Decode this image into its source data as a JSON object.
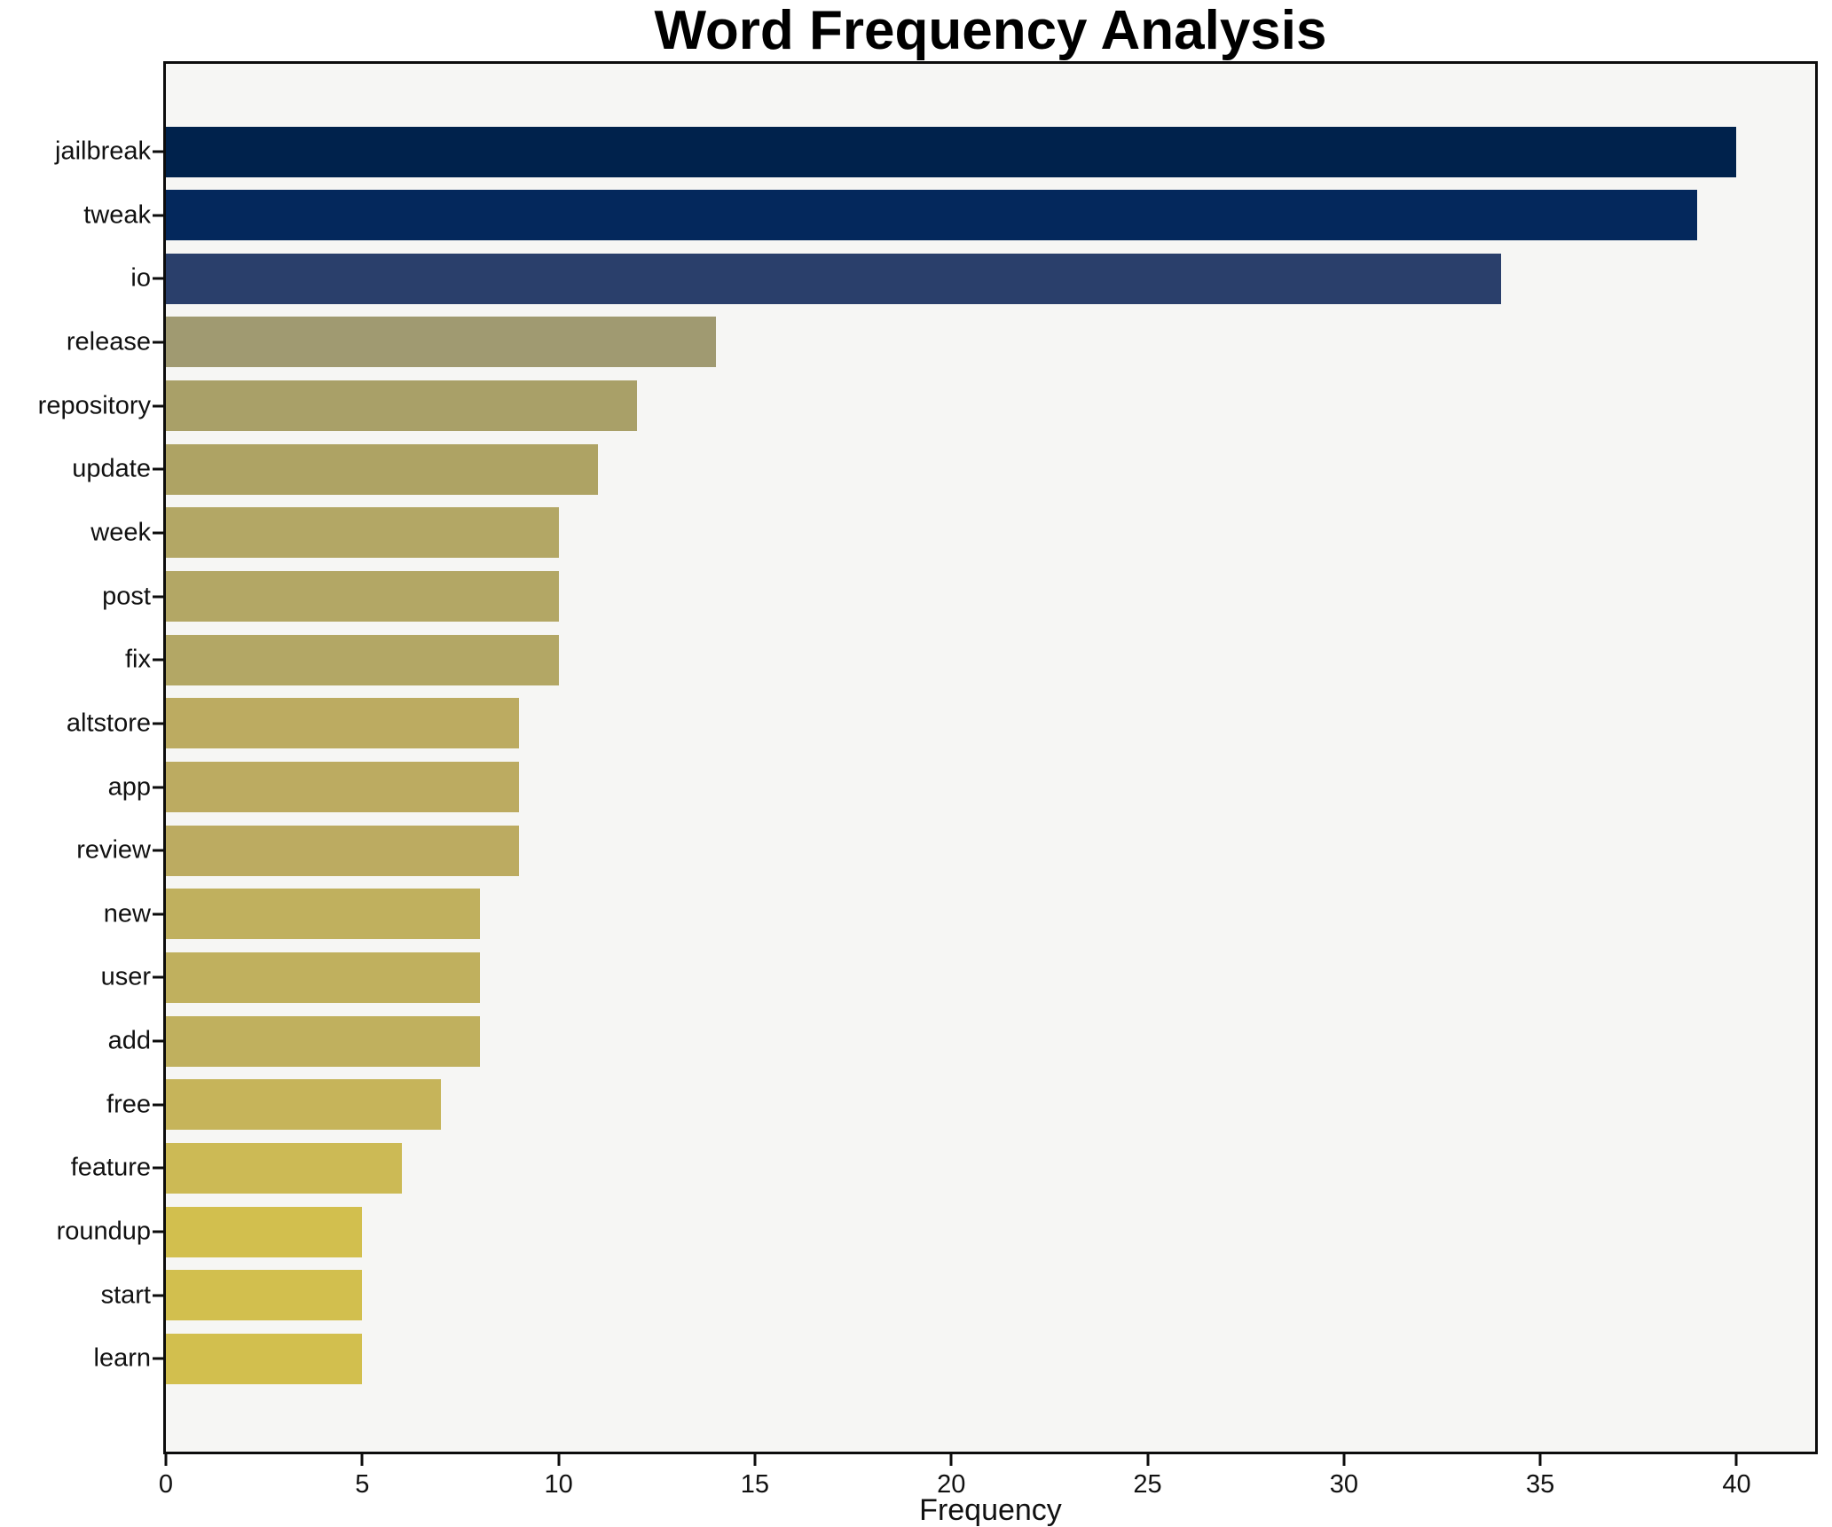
{
  "chart_data": {
    "type": "bar",
    "orientation": "horizontal",
    "title": "Word Frequency Analysis",
    "xlabel": "Frequency",
    "ylabel": "",
    "xlim": [
      0,
      42
    ],
    "xticks": [
      0,
      5,
      10,
      15,
      20,
      25,
      30,
      35,
      40
    ],
    "grid": false,
    "legend": "none",
    "plot_background": "#f6f6f4",
    "figure_background": "#ffffff",
    "spine_color": "#0c0c0c",
    "categories": [
      "jailbreak",
      "tweak",
      "io",
      "release",
      "repository",
      "update",
      "week",
      "post",
      "fix",
      "altstore",
      "app",
      "review",
      "new",
      "user",
      "add",
      "free",
      "feature",
      "roundup",
      "start",
      "learn"
    ],
    "values": [
      40,
      39,
      34,
      14,
      12,
      11,
      10,
      10,
      10,
      9,
      9,
      9,
      8,
      8,
      8,
      7,
      6,
      5,
      5,
      5
    ],
    "bar_colors": [
      "#00224c",
      "#04285c",
      "#2a3f6b",
      "#a09a71",
      "#a9a068",
      "#aea364",
      "#b3a765",
      "#b3a765",
      "#b3a765",
      "#bcab61",
      "#bcab61",
      "#bcab61",
      "#c0b05e",
      "#c0b05e",
      "#c0b05e",
      "#c6b45a",
      "#ccba55",
      "#d2bf4e",
      "#d2bf4e",
      "#d2bf4e"
    ]
  }
}
